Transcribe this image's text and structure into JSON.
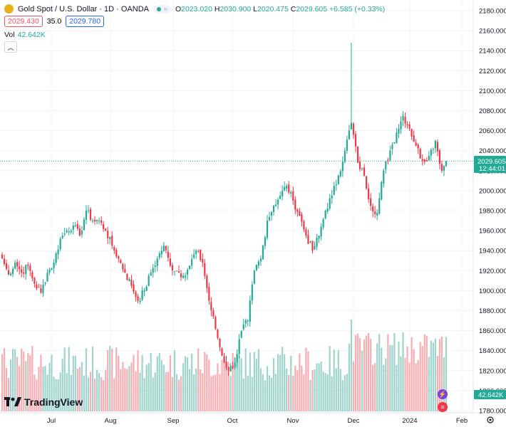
{
  "header": {
    "title": "Gold Spot / U.S. Dollar · 1D · OANDA",
    "ohlc": {
      "o_label": "O",
      "o": "2023.020",
      "h_label": "H",
      "h": "2030.900",
      "l_label": "L",
      "l": "2020.475",
      "c_label": "C",
      "c": "2029.605",
      "change": "+6.585 (+0.33%)"
    },
    "sell_price": "2029.430",
    "spread": "35.0",
    "buy_price": "2029.780",
    "volume_label": "Vol",
    "volume_value": "42.642K",
    "collapse_icon": "chevron-up-icon"
  },
  "price_axis": {
    "ticks": [
      "2180.000",
      "2160.000",
      "2140.000",
      "2120.000",
      "2100.000",
      "2080.000",
      "2060.000",
      "2040.000",
      "2020.000",
      "2000.000",
      "1980.000",
      "1960.000",
      "1940.000",
      "1920.000",
      "1900.000",
      "1880.000",
      "1860.000",
      "1840.000",
      "1820.000",
      "1800.000",
      "1780.000"
    ],
    "last_price": "2029.605",
    "countdown": "12:44:01",
    "volume_tag": "42.642K"
  },
  "time_axis": {
    "labels": [
      "Jul",
      "Aug",
      "Sep",
      "Oct",
      "Nov",
      "Dec",
      "2024",
      "Feb"
    ]
  },
  "logo": {
    "text": "TradingView"
  },
  "colors": {
    "up": "#22ab94",
    "down": "#f23645",
    "vol_up": "#9fd4cc",
    "vol_down": "#f6aeb3",
    "grid": "#f0f3fa",
    "axis_text": "#131722"
  },
  "chart_data": {
    "type": "candlestick",
    "title": "Gold Spot / U.S. Dollar · 1D · OANDA",
    "ylim": [
      1780,
      2180
    ],
    "x_labels": [
      "Jul",
      "Aug",
      "Sep",
      "Oct",
      "Nov",
      "Dec",
      "2024",
      "Feb"
    ],
    "anchors": [
      {
        "d": 0,
        "c": 1932
      },
      {
        "d": 3,
        "c": 1916
      },
      {
        "d": 6,
        "c": 1928
      },
      {
        "d": 9,
        "c": 1918
      },
      {
        "d": 12,
        "c": 1925
      },
      {
        "d": 15,
        "c": 1907
      },
      {
        "d": 18,
        "c": 1898
      },
      {
        "d": 21,
        "c": 1918
      },
      {
        "d": 24,
        "c": 1928
      },
      {
        "d": 27,
        "c": 1952
      },
      {
        "d": 30,
        "c": 1960
      },
      {
        "d": 33,
        "c": 1965
      },
      {
        "d": 36,
        "c": 1955
      },
      {
        "d": 39,
        "c": 1980
      },
      {
        "d": 42,
        "c": 1970
      },
      {
        "d": 45,
        "c": 1970
      },
      {
        "d": 48,
        "c": 1960
      },
      {
        "d": 51,
        "c": 1945
      },
      {
        "d": 54,
        "c": 1932
      },
      {
        "d": 57,
        "c": 1918
      },
      {
        "d": 60,
        "c": 1905
      },
      {
        "d": 63,
        "c": 1890
      },
      {
        "d": 66,
        "c": 1900
      },
      {
        "d": 69,
        "c": 1918
      },
      {
        "d": 72,
        "c": 1932
      },
      {
        "d": 75,
        "c": 1945
      },
      {
        "d": 78,
        "c": 1925
      },
      {
        "d": 81,
        "c": 1920
      },
      {
        "d": 84,
        "c": 1915
      },
      {
        "d": 87,
        "c": 1925
      },
      {
        "d": 90,
        "c": 1940
      },
      {
        "d": 93,
        "c": 1928
      },
      {
        "d": 96,
        "c": 1890
      },
      {
        "d": 99,
        "c": 1862
      },
      {
        "d": 102,
        "c": 1835
      },
      {
        "d": 105,
        "c": 1820
      },
      {
        "d": 108,
        "c": 1828
      },
      {
        "d": 111,
        "c": 1860
      },
      {
        "d": 114,
        "c": 1870
      },
      {
        "d": 117,
        "c": 1920
      },
      {
        "d": 120,
        "c": 1932
      },
      {
        "d": 123,
        "c": 1970
      },
      {
        "d": 126,
        "c": 1985
      },
      {
        "d": 129,
        "c": 1995
      },
      {
        "d": 132,
        "c": 2005
      },
      {
        "d": 135,
        "c": 1990
      },
      {
        "d": 138,
        "c": 1975
      },
      {
        "d": 141,
        "c": 1955
      },
      {
        "d": 144,
        "c": 1940
      },
      {
        "d": 147,
        "c": 1955
      },
      {
        "d": 150,
        "c": 1980
      },
      {
        "d": 153,
        "c": 1995
      },
      {
        "d": 156,
        "c": 2015
      },
      {
        "d": 159,
        "c": 2040
      },
      {
        "d": 162,
        "c": 2068
      },
      {
        "d": 165,
        "c": 2028
      },
      {
        "d": 168,
        "c": 2015
      },
      {
        "d": 171,
        "c": 1985
      },
      {
        "d": 174,
        "c": 1978
      },
      {
        "d": 177,
        "c": 2020
      },
      {
        "d": 180,
        "c": 2040
      },
      {
        "d": 183,
        "c": 2058
      },
      {
        "d": 186,
        "c": 2075
      },
      {
        "d": 189,
        "c": 2062
      },
      {
        "d": 192,
        "c": 2045
      },
      {
        "d": 195,
        "c": 2030
      },
      {
        "d": 198,
        "c": 2035
      },
      {
        "d": 201,
        "c": 2050
      },
      {
        "d": 204,
        "c": 2020
      },
      {
        "d": 206,
        "c": 2029.605
      }
    ],
    "volume_ylim": [
      0,
      85
    ]
  }
}
